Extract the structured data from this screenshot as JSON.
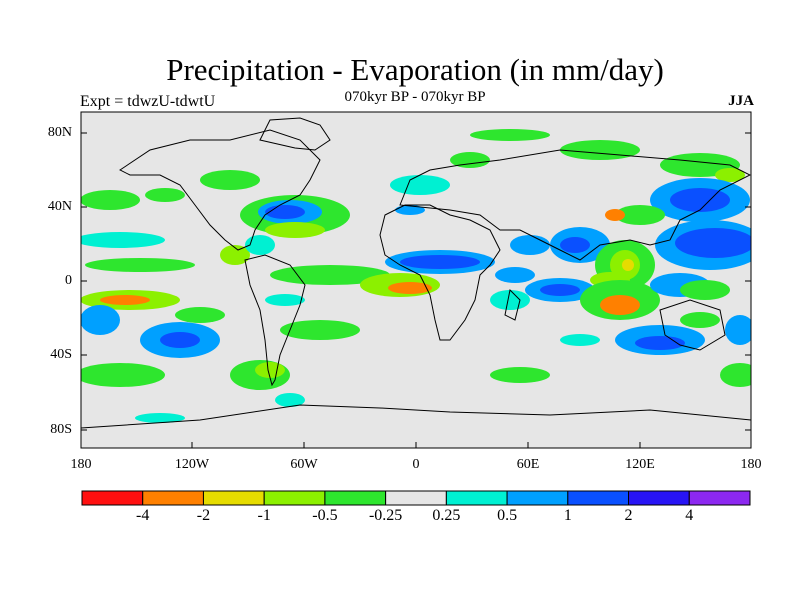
{
  "title": "Precipitation - Evaporation (in mm/day)",
  "subtitle": "070kyr BP - 070kyr BP",
  "experiment": "Expt = tdwzU-tdwtU",
  "season": "JJA",
  "lat_ticks": [
    "80N",
    "40N",
    "0",
    "40S",
    "80S"
  ],
  "lon_ticks": [
    "180",
    "120W",
    "60W",
    "0",
    "60E",
    "120E",
    "180"
  ],
  "colorbar": {
    "colors": [
      "#ff1010",
      "#ff8000",
      "#e6dc00",
      "#8cf000",
      "#2ee62e",
      "#e6e6e6",
      "#00f0d2",
      "#00a0ff",
      "#0a50ff",
      "#2814f5",
      "#8c28f0"
    ],
    "labels": [
      "-4",
      "-2",
      "-1",
      "-0.5",
      "-0.25",
      "0.25",
      "0.5",
      "1",
      "2",
      "4"
    ]
  }
}
